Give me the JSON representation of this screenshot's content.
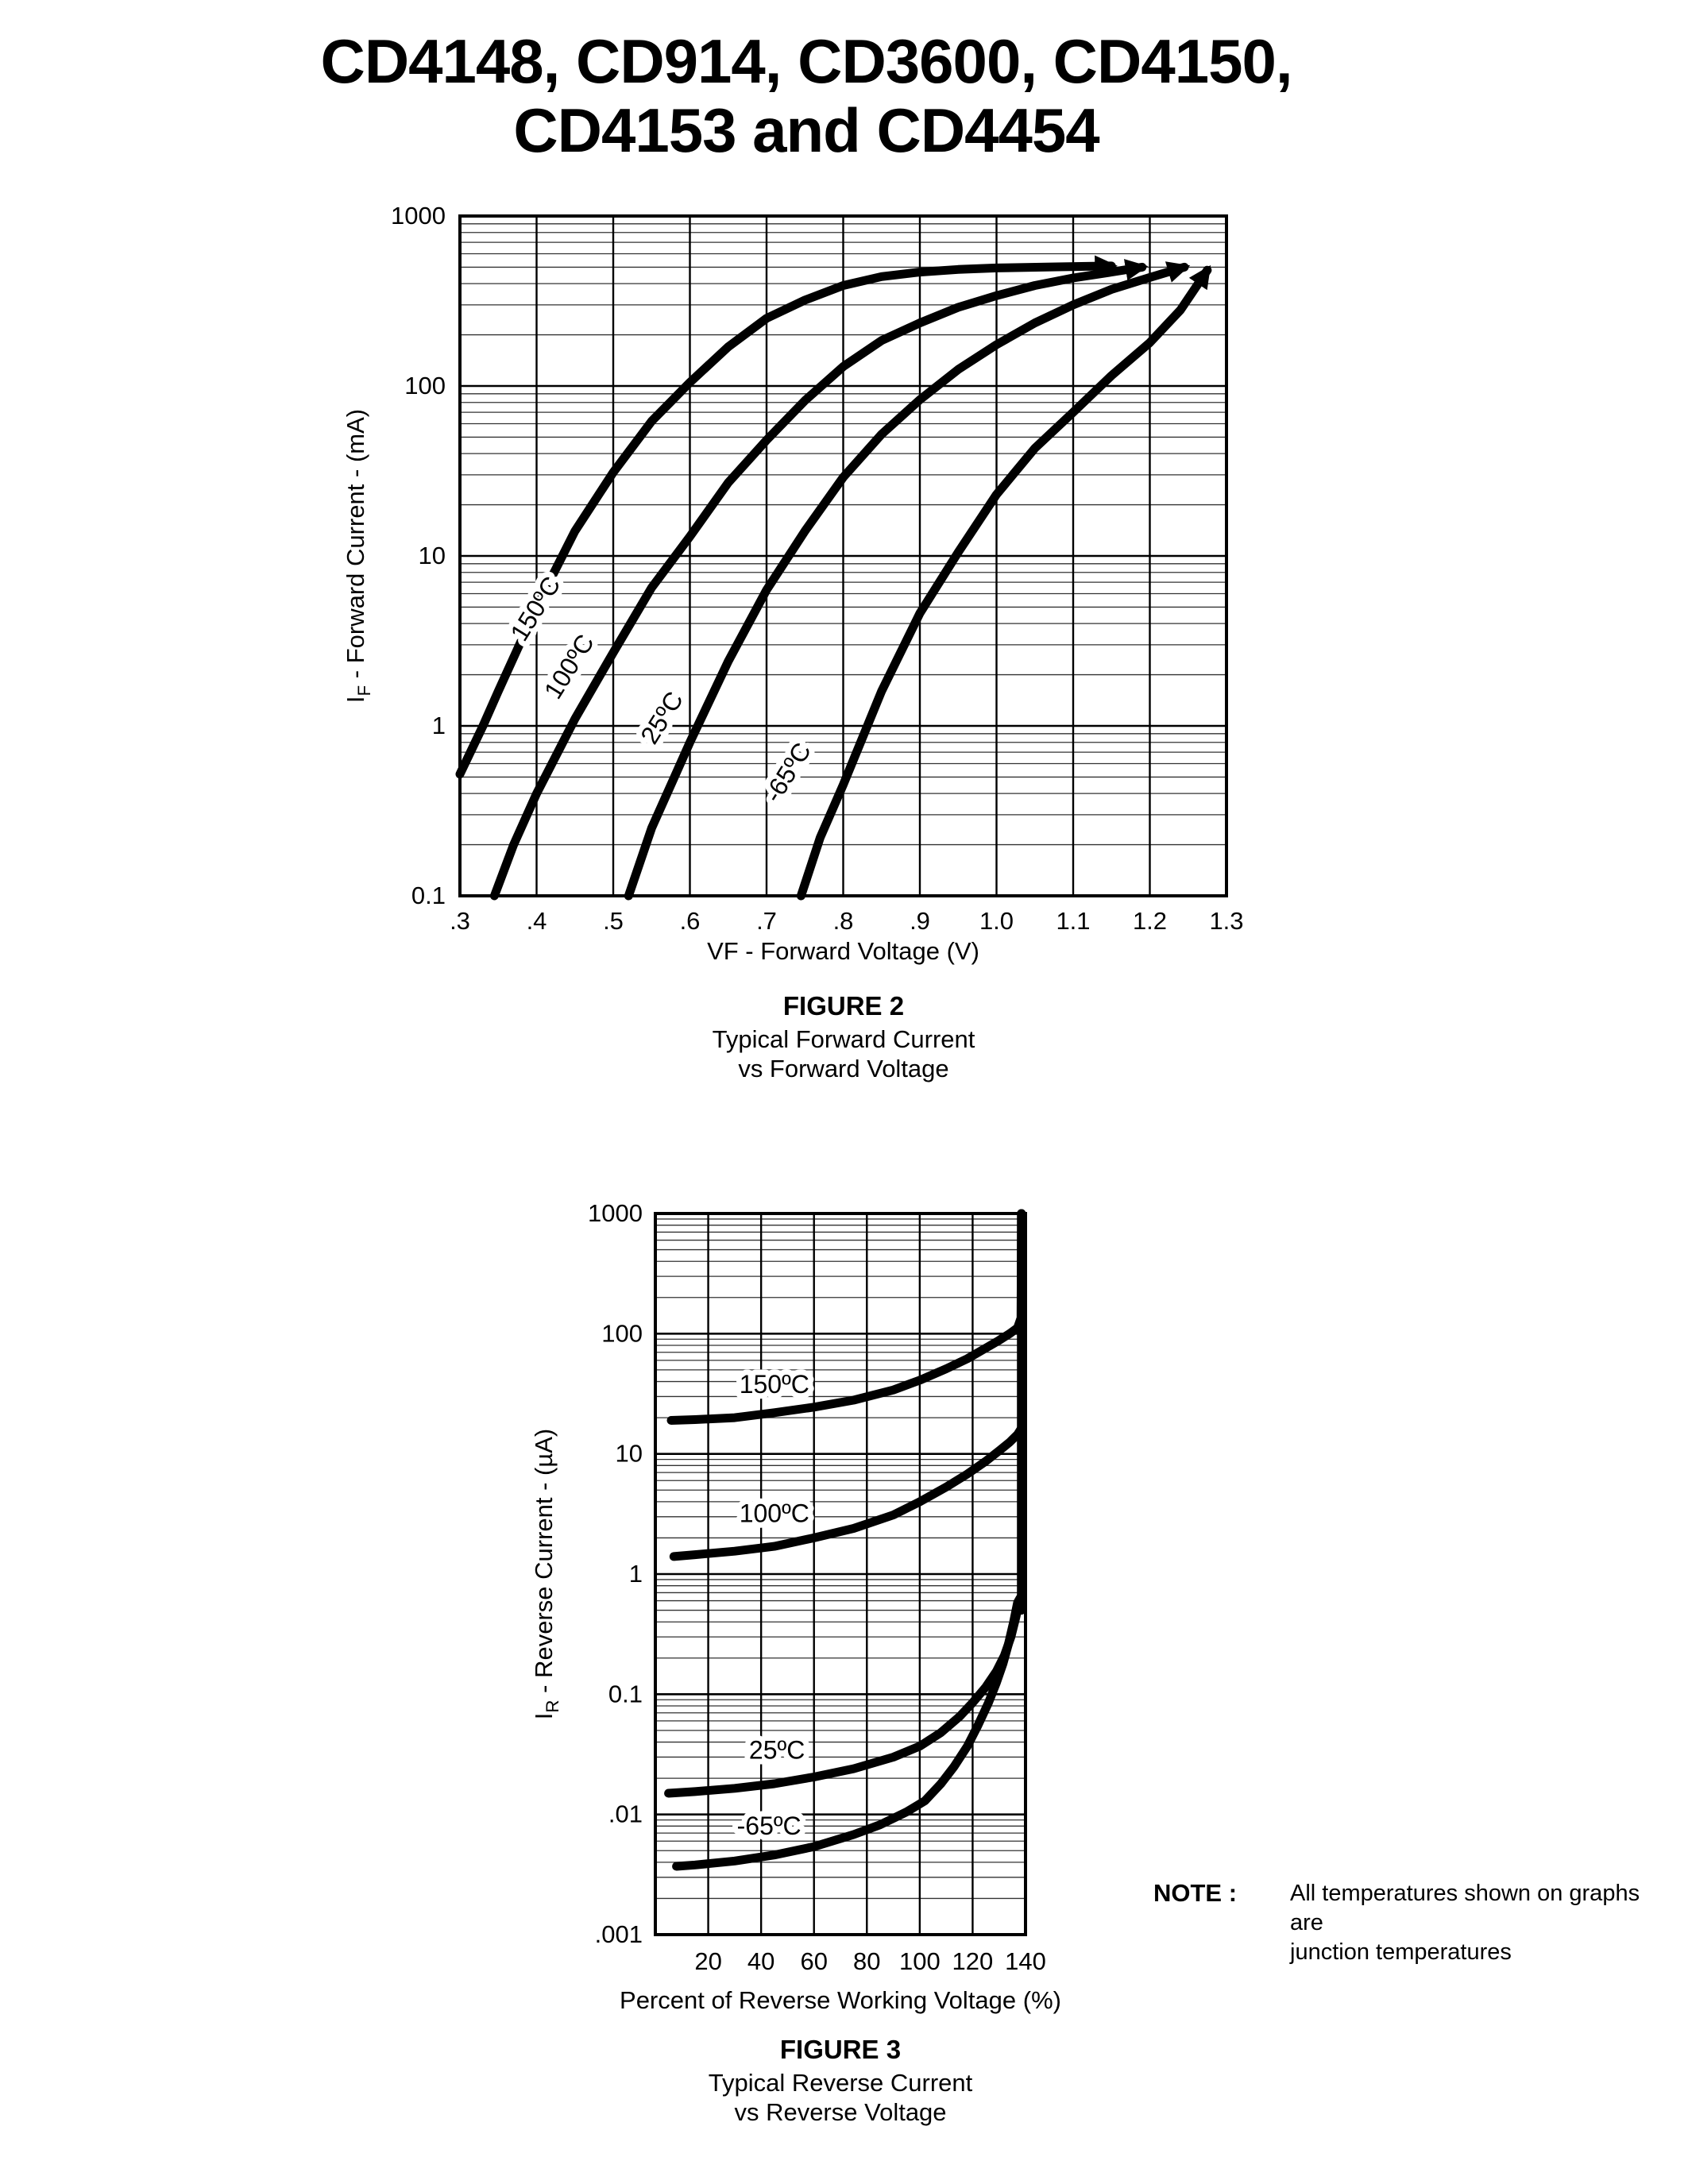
{
  "page": {
    "title_line1": "CD4148, CD914, CD3600, CD4150,",
    "title_line2": "CD4153 and CD4454"
  },
  "note": {
    "label": "NOTE :",
    "line1": "All temperatures shown on graphs are",
    "line2": "junction temperatures"
  },
  "chart_data": [
    {
      "id": "fig2",
      "type": "line",
      "title": "FIGURE 2",
      "subtitle1": "Typical Forward Current",
      "subtitle2": "vs Forward Voltage",
      "xlabel": "VF - Forward Voltage (V)",
      "ylabel_pre": "I",
      "ylabel_sub": "F",
      "ylabel_post": " - Forward Current - (mA)",
      "x_axis": {
        "scale": "linear",
        "min": 0.3,
        "max": 1.3,
        "tick_values": [
          0.3,
          0.4,
          0.5,
          0.6,
          0.7,
          0.8,
          0.9,
          1.0,
          1.1,
          1.2,
          1.3
        ],
        "tick_labels": [
          ".3",
          ".4",
          ".5",
          ".6",
          ".7",
          ".8",
          ".9",
          "1.0",
          "1.1",
          "1.2",
          "1.3"
        ]
      },
      "y_axis": {
        "scale": "log",
        "min": 0.1,
        "max": 1000,
        "tick_values": [
          1000,
          100,
          10,
          1,
          0.1
        ],
        "tick_labels": [
          "1000",
          "100",
          "10",
          "1",
          "0.1"
        ]
      },
      "grid": {
        "x_minor": false,
        "y_minor": true
      },
      "series": [
        {
          "name": "150C",
          "arrow": true,
          "label": {
            "text": "150ºC",
            "x": 0.408,
            "y": 4.6,
            "rotate": -58
          },
          "points": [
            [
              0.3,
              0.52
            ],
            [
              0.33,
              1.0
            ],
            [
              0.35,
              1.6
            ],
            [
              0.4,
              5.0
            ],
            [
              0.45,
              14
            ],
            [
              0.5,
              31
            ],
            [
              0.55,
              62
            ],
            [
              0.6,
              105
            ],
            [
              0.65,
              170
            ],
            [
              0.7,
              250
            ],
            [
              0.75,
              320
            ],
            [
              0.8,
              390
            ],
            [
              0.85,
              440
            ],
            [
              0.9,
              468
            ],
            [
              0.95,
              485
            ],
            [
              1.0,
              495
            ],
            [
              1.08,
              502
            ],
            [
              1.15,
              508
            ]
          ]
        },
        {
          "name": "100C",
          "arrow": true,
          "label": {
            "text": "100ºC",
            "x": 0.452,
            "y": 2.1,
            "rotate": -58
          },
          "points": [
            [
              0.345,
              0.1
            ],
            [
              0.37,
              0.2
            ],
            [
              0.4,
              0.4
            ],
            [
              0.45,
              1.1
            ],
            [
              0.5,
              2.7
            ],
            [
              0.55,
              6.5
            ],
            [
              0.6,
              13
            ],
            [
              0.65,
              27
            ],
            [
              0.7,
              48
            ],
            [
              0.75,
              82
            ],
            [
              0.8,
              130
            ],
            [
              0.85,
              185
            ],
            [
              0.9,
              235
            ],
            [
              0.95,
              290
            ],
            [
              1.0,
              340
            ],
            [
              1.05,
              390
            ],
            [
              1.1,
              432
            ],
            [
              1.15,
              468
            ],
            [
              1.19,
              500
            ]
          ]
        },
        {
          "name": "25C",
          "arrow": true,
          "label": {
            "text": "25ºC",
            "x": 0.573,
            "y": 1.05,
            "rotate": -58
          },
          "points": [
            [
              0.52,
              0.1
            ],
            [
              0.55,
              0.25
            ],
            [
              0.6,
              0.8
            ],
            [
              0.65,
              2.4
            ],
            [
              0.7,
              6.3
            ],
            [
              0.75,
              14
            ],
            [
              0.8,
              29
            ],
            [
              0.85,
              52
            ],
            [
              0.9,
              83
            ],
            [
              0.95,
              125
            ],
            [
              1.0,
              175
            ],
            [
              1.05,
              235
            ],
            [
              1.1,
              300
            ],
            [
              1.15,
              370
            ],
            [
              1.2,
              435
            ],
            [
              1.245,
              500
            ]
          ]
        },
        {
          "name": "-65C",
          "arrow": true,
          "label": {
            "text": "-65ºC",
            "x": 0.737,
            "y": 0.5,
            "rotate": -58
          },
          "points": [
            [
              0.745,
              0.1
            ],
            [
              0.77,
              0.22
            ],
            [
              0.8,
              0.45
            ],
            [
              0.85,
              1.6
            ],
            [
              0.9,
              4.6
            ],
            [
              0.95,
              10.5
            ],
            [
              1.0,
              23
            ],
            [
              1.05,
              43
            ],
            [
              1.1,
              70
            ],
            [
              1.15,
              115
            ],
            [
              1.2,
              180
            ],
            [
              1.24,
              280
            ],
            [
              1.275,
              480
            ]
          ]
        }
      ]
    },
    {
      "id": "fig3",
      "type": "line",
      "title": "FIGURE 3",
      "subtitle1": "Typical Reverse Current",
      "subtitle2": "vs Reverse Voltage",
      "xlabel": "Percent of Reverse Working Voltage (%)",
      "ylabel_pre": "I",
      "ylabel_sub": "R",
      "ylabel_post": " - Reverse Current - (µA)",
      "x_axis": {
        "scale": "linear",
        "min": 0,
        "max": 140,
        "tick_values": [
          20,
          40,
          60,
          80,
          100,
          120,
          140
        ],
        "tick_labels": [
          "20",
          "40",
          "60",
          "80",
          "100",
          "120",
          "140"
        ]
      },
      "y_axis": {
        "scale": "log",
        "min": 0.001,
        "max": 1000,
        "tick_values": [
          1000,
          100,
          10,
          1,
          0.1,
          0.01,
          0.001
        ],
        "tick_labels": [
          "1000",
          "100",
          "10",
          "1",
          "0.1",
          ".01",
          ".001"
        ]
      },
      "grid": {
        "x_minor": false,
        "y_minor": true
      },
      "series": [
        {
          "name": "150C",
          "arrow": false,
          "label": {
            "text": "150ºC",
            "x": 45,
            "y": 32,
            "rotate": 0
          },
          "points": [
            [
              6,
              19
            ],
            [
              15,
              19.3
            ],
            [
              30,
              20
            ],
            [
              45,
              22
            ],
            [
              60,
              24.5
            ],
            [
              75,
              28
            ],
            [
              90,
              34
            ],
            [
              100,
              41
            ],
            [
              110,
              51
            ],
            [
              118,
              62
            ],
            [
              125,
              76
            ],
            [
              130,
              88
            ],
            [
              134,
              100
            ],
            [
              137,
              112
            ],
            [
              138.3,
              135
            ],
            [
              138.5,
              1000
            ]
          ]
        },
        {
          "name": "100C",
          "arrow": false,
          "label": {
            "text": "100ºC",
            "x": 45,
            "y": 2.7,
            "rotate": 0
          },
          "points": [
            [
              7,
              1.4
            ],
            [
              15,
              1.45
            ],
            [
              30,
              1.55
            ],
            [
              45,
              1.7
            ],
            [
              60,
              2.0
            ],
            [
              75,
              2.4
            ],
            [
              90,
              3.1
            ],
            [
              100,
              4.0
            ],
            [
              110,
              5.3
            ],
            [
              118,
              6.8
            ],
            [
              125,
              8.7
            ],
            [
              130,
              10.6
            ],
            [
              134,
              12.5
            ],
            [
              137,
              14.5
            ],
            [
              138.2,
              16
            ]
          ]
        },
        {
          "name": "25C",
          "arrow": false,
          "label": {
            "text": "25ºC",
            "x": 46,
            "y": 0.029,
            "rotate": 0
          },
          "points": [
            [
              5,
              0.015
            ],
            [
              15,
              0.0155
            ],
            [
              30,
              0.0165
            ],
            [
              45,
              0.018
            ],
            [
              60,
              0.0205
            ],
            [
              75,
              0.024
            ],
            [
              90,
              0.03
            ],
            [
              100,
              0.037
            ],
            [
              108,
              0.048
            ],
            [
              115,
              0.065
            ],
            [
              120,
              0.085
            ],
            [
              125,
              0.115
            ],
            [
              129,
              0.155
            ],
            [
              132,
              0.21
            ],
            [
              134.5,
              0.3
            ],
            [
              136.5,
              0.45
            ],
            [
              137.3,
              0.55
            ]
          ]
        },
        {
          "name": "-65C",
          "arrow": false,
          "label": {
            "text": "-65ºC",
            "x": 43,
            "y": 0.0068,
            "rotate": 0
          },
          "points": [
            [
              8,
              0.0037
            ],
            [
              15,
              0.0038
            ],
            [
              30,
              0.0041
            ],
            [
              45,
              0.0046
            ],
            [
              60,
              0.0054
            ],
            [
              75,
              0.0068
            ],
            [
              85,
              0.0082
            ],
            [
              95,
              0.0105
            ],
            [
              102,
              0.013
            ],
            [
              108,
              0.018
            ],
            [
              113,
              0.025
            ],
            [
              118,
              0.037
            ],
            [
              122,
              0.055
            ],
            [
              126,
              0.085
            ],
            [
              129,
              0.125
            ],
            [
              131.5,
              0.18
            ],
            [
              133.5,
              0.26
            ],
            [
              135.5,
              0.4
            ],
            [
              137,
              0.58
            ],
            [
              137.9,
              0.63
            ]
          ]
        },
        {
          "name": "breakdown",
          "arrow": false,
          "label": null,
          "points": [
            [
              138.4,
              0.5
            ],
            [
              138.4,
              1000
            ]
          ]
        }
      ]
    }
  ]
}
